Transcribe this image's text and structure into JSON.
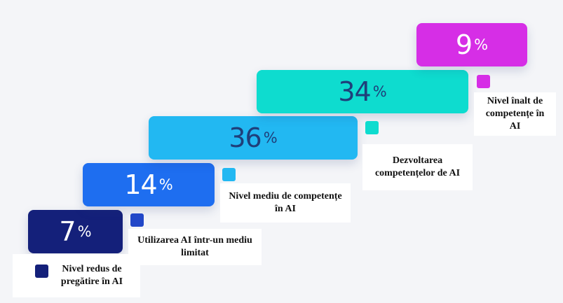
{
  "chart_data": {
    "type": "bar",
    "unit": "%",
    "categories": [
      "Nivel redus de pregătire în AI",
      "Utilizarea AI într-un mediu limitat",
      "Nivel mediu de competențe în AI",
      "Dezvoltarea competențelor de AI",
      "Nivel înalt de competențe în AI"
    ],
    "values": [
      7,
      14,
      36,
      34,
      9
    ],
    "colors": [
      "#14207a",
      "#1e6ef0",
      "#22b8f2",
      "#0edccf",
      "#d62ee6"
    ],
    "legend_swatch_colors": [
      "#14207a",
      "#2247c8",
      "#22b8f2",
      "#0edccf",
      "#d62ee6"
    ],
    "value_text_colors": [
      "#ffffff",
      "#ffffff",
      "#1f3f7a",
      "#1f3f7a",
      "#ffffff"
    ],
    "title": "",
    "xlabel": "",
    "ylabel": ""
  }
}
